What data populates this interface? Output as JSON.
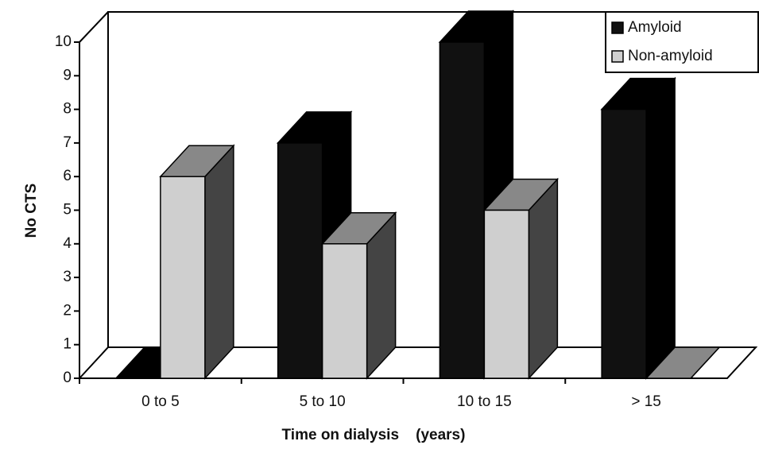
{
  "chart_data": {
    "type": "bar3d",
    "categories": [
      "0 to 5",
      "5 to 10",
      "10 to 15",
      "> 15"
    ],
    "series": [
      {
        "name": "Amyloid",
        "color": "#111111",
        "values": [
          0,
          7,
          10,
          8
        ]
      },
      {
        "name": "Non-amyloid",
        "color": "#cfcfcf",
        "values": [
          6,
          4,
          5,
          0
        ]
      }
    ],
    "ylim": [
      0,
      10
    ],
    "yticks": [
      0,
      1,
      2,
      3,
      4,
      5,
      6,
      7,
      8,
      9,
      10
    ],
    "y_label": "No CTS",
    "x_label": "Time on dialysis    (years)",
    "legend": "top-right"
  }
}
